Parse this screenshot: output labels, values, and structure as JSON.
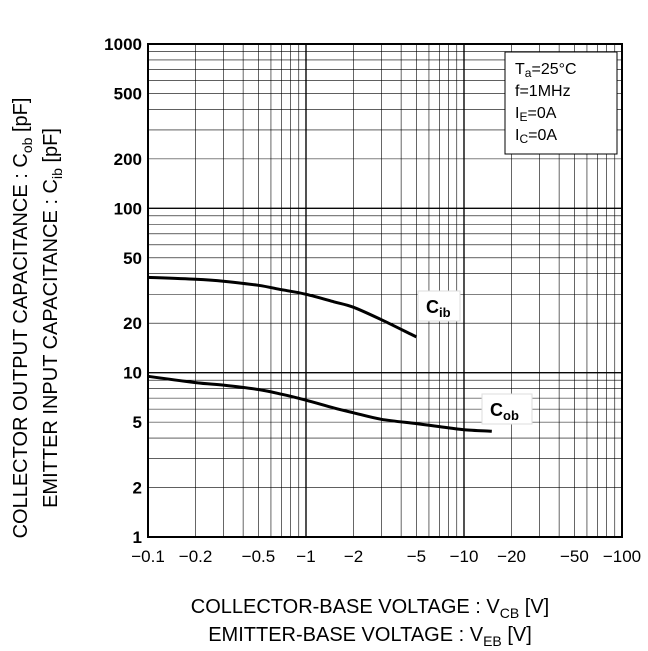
{
  "chart_data": {
    "type": "line",
    "x_scale": "log",
    "y_scale": "log",
    "xlim": [
      -0.1,
      -100
    ],
    "ylim": [
      1,
      1000
    ],
    "grid": true,
    "x_ticks": [
      "−0.1",
      "−0.2",
      "−0.5",
      "−1",
      "−2",
      "−5",
      "−10",
      "−20",
      "−50",
      "−100"
    ],
    "y_ticks": [
      "1",
      "2",
      "5",
      "10",
      "20",
      "50",
      "100",
      "200",
      "500",
      "1000"
    ],
    "xlabel_line1": {
      "main": "COLLECTOR-BASE VOLTAGE : V",
      "sub": "CB",
      "unit": " [V]"
    },
    "xlabel_line2": {
      "main": "EMITTER-BASE VOLTAGE : V",
      "sub": "EB",
      "unit": " [V]"
    },
    "ylabel_line1": {
      "main": "COLLECTOR OUTPUT CAPACITANCE : C",
      "sub": "ob",
      "unit": " [pF]"
    },
    "ylabel_line2": {
      "main": "EMITTER INPUT CAPACITANCE : C",
      "sub": "ib",
      "unit": " [pF]"
    },
    "conditions": [
      {
        "main": "T",
        "sub": "a",
        "rest": "=25°C"
      },
      {
        "main": "f=1MHz",
        "sub": "",
        "rest": ""
      },
      {
        "main": "I",
        "sub": "E",
        "rest": "=0A"
      },
      {
        "main": "I",
        "sub": "C",
        "rest": "=0A"
      }
    ],
    "legend_position": "top-right",
    "series": [
      {
        "name": "Cib",
        "label_main": "C",
        "label_sub": "ib",
        "x": [
          -0.1,
          -0.2,
          -0.3,
          -0.5,
          -0.7,
          -1,
          -1.5,
          -2,
          -3,
          -5
        ],
        "y": [
          38,
          37,
          36,
          34,
          32,
          30,
          27,
          25,
          21,
          16.5
        ]
      },
      {
        "name": "Cob",
        "label_main": "C",
        "label_sub": "ob",
        "x": [
          -0.1,
          -0.2,
          -0.3,
          -0.5,
          -0.7,
          -1,
          -1.5,
          -2,
          -3,
          -5,
          -7,
          -10,
          -15
        ],
        "y": [
          9.5,
          8.7,
          8.4,
          7.9,
          7.4,
          6.8,
          6.1,
          5.7,
          5.2,
          4.9,
          4.7,
          4.5,
          4.4
        ]
      }
    ]
  }
}
